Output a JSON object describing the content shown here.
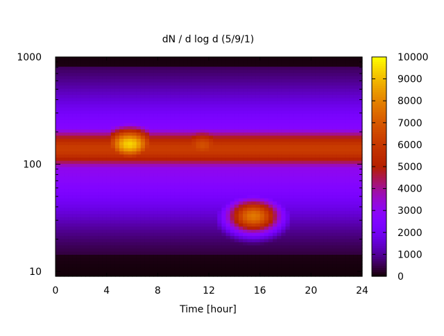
{
  "chart_data": {
    "type": "heatmap",
    "title": "dN / d log d (5/9/1)",
    "xlabel": "Time [hour]",
    "ylabel": "",
    "x_ticks": [
      "0",
      "4",
      "8",
      "12",
      "16",
      "20",
      "24"
    ],
    "x_tick_values": [
      0,
      4,
      8,
      12,
      16,
      20,
      24
    ],
    "y_ticks": [
      "10",
      "100",
      "1000"
    ],
    "y_tick_values": [
      10,
      100,
      1000
    ],
    "y_scale": "log",
    "xlim": [
      0,
      24
    ],
    "ylim": [
      9,
      1000
    ],
    "colorbar": {
      "ticks": [
        "0",
        "1000",
        "2000",
        "3000",
        "4000",
        "5000",
        "6000",
        "7000",
        "8000",
        "9000",
        "10000"
      ],
      "tick_values": [
        0,
        1000,
        2000,
        3000,
        4000,
        5000,
        6000,
        7000,
        8000,
        9000,
        10000
      ],
      "range": [
        0,
        10000
      ],
      "palette": "black-purple-red-orange-yellow"
    },
    "features": [
      {
        "kind": "band",
        "x": [
          0,
          24
        ],
        "y_center": 140,
        "y_spread_decades": 0.15,
        "value": 6200
      },
      {
        "kind": "peak",
        "x_center": 5.8,
        "y_center": 155,
        "value": 9400
      },
      {
        "kind": "peak",
        "x_center": 11.5,
        "y_center": 150,
        "value": 6800
      },
      {
        "kind": "peak",
        "x_center": 15.5,
        "y_center": 33,
        "value": 7800
      }
    ],
    "grid": false,
    "legend": "none"
  }
}
